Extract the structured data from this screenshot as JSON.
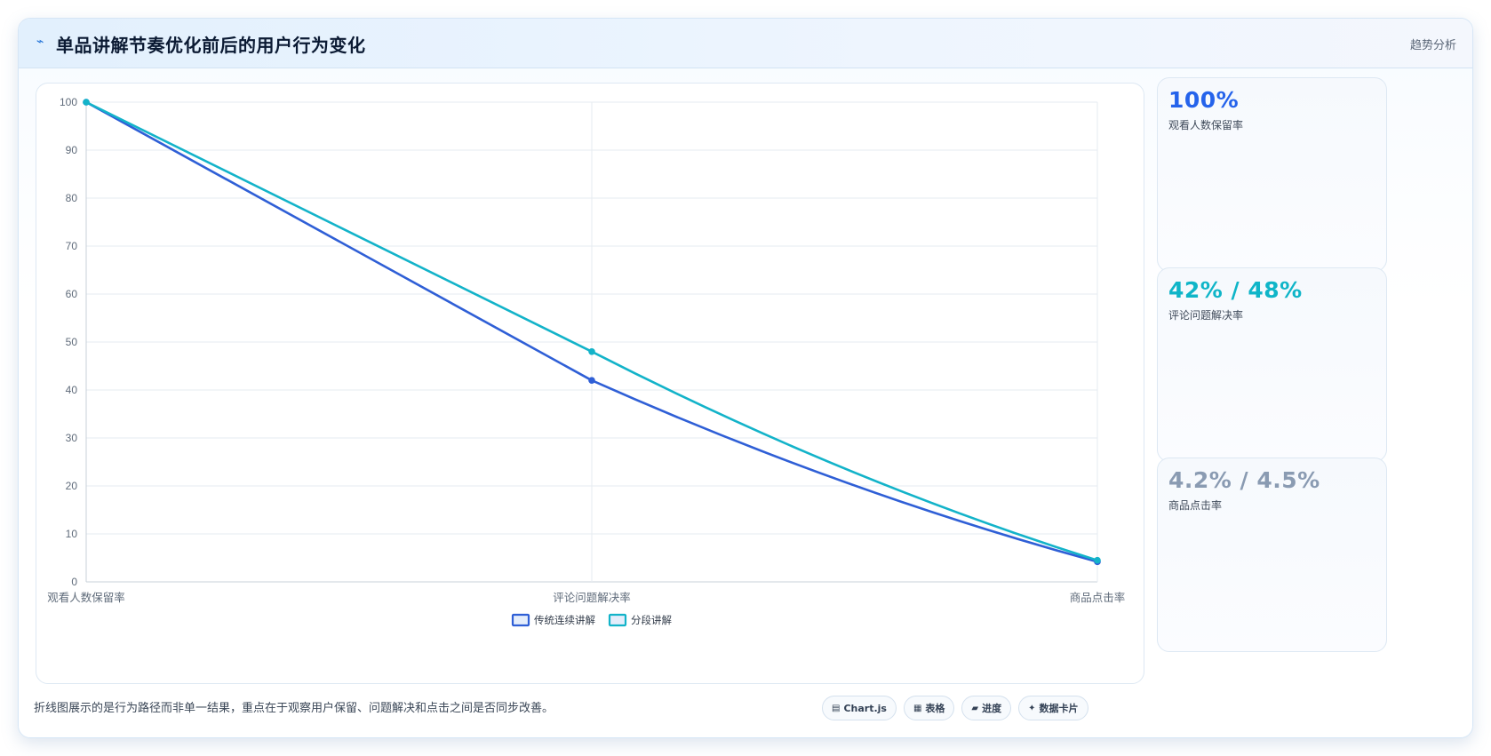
{
  "header": {
    "icon": "pulse-icon",
    "title": "单品讲解节奏优化前后的用户行为变化",
    "tag": "趋势分析"
  },
  "stats": [
    {
      "value": "100%",
      "label": "观看人数保留率",
      "color": "#2563eb"
    },
    {
      "value": "42% / 48%",
      "label": "评论问题解决率",
      "color": "#0fb5c8"
    },
    {
      "value": "4.2% / 4.5%",
      "label": "商品点击率",
      "color": "#8a9bb2"
    }
  ],
  "footnote": "折线图展示的是行为路径而非单一结果，重点在于观察用户保留、问题解决和点击之间是否同步改善。",
  "pills": [
    {
      "icon": "chart-icon",
      "glyph": "▤",
      "label": "Chart.js"
    },
    {
      "icon": "table-icon",
      "glyph": "▦",
      "label": "表格"
    },
    {
      "icon": "progress-icon",
      "glyph": "▰",
      "label": "进度"
    },
    {
      "icon": "card-icon",
      "glyph": "✦",
      "label": "数据卡片"
    }
  ],
  "chart_data": {
    "type": "line",
    "categories": [
      "观看人数保留率",
      "评论问题解决率",
      "商品点击率"
    ],
    "series": [
      {
        "name": "传统连续讲解",
        "values": [
          100,
          42,
          4.2
        ],
        "color": "#2f5fd6"
      },
      {
        "name": "分段讲解",
        "values": [
          100,
          48,
          4.5
        ],
        "color": "#13b3c9"
      }
    ],
    "yticks": [
      0,
      10,
      20,
      30,
      40,
      50,
      60,
      70,
      80,
      90,
      100
    ],
    "ylim": [
      0,
      100
    ],
    "grid": true,
    "legend": "bottom"
  }
}
